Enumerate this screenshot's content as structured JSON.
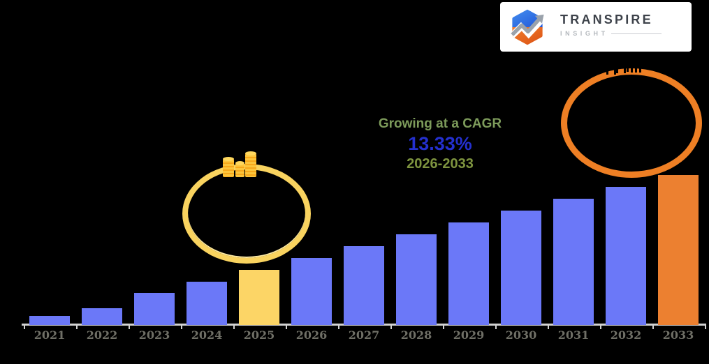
{
  "page": {
    "background": "#000000"
  },
  "logo": {
    "brand": "TRANSPIRE",
    "subtitle": "INSIGHT",
    "icon": "hexagon-growth-arrow-icon"
  },
  "annotation": {
    "line1": "Growing at a CAGR",
    "value": "13.33%",
    "range": "2026-2033"
  },
  "decorations": {
    "yellow_circle": "hand-drawn ellipse around 2024-2025 bars",
    "coins_icon": "three gold coin stacks on top of yellow circle",
    "orange_circle": "hand-drawn ellipse above 2031-2033 bars",
    "silhouette_icon": "black mini bar-chart icon partially visible over orange circle top"
  },
  "chart_data": {
    "type": "bar",
    "title": "",
    "xlabel": "",
    "ylabel": "",
    "grid": false,
    "legend": false,
    "categories": [
      "2021",
      "2022",
      "2023",
      "2024",
      "2025",
      "2026",
      "2027",
      "2028",
      "2029",
      "2030",
      "2031",
      "2032",
      "2033"
    ],
    "values": [
      13,
      24,
      46,
      62,
      79,
      96,
      113,
      130,
      147,
      164,
      181,
      198,
      215
    ],
    "value_note": "no numeric y-axis shown; values are relative bar heights in pixels",
    "ylim": [
      0,
      230
    ],
    "bar_colors": {
      "default": "#6B78F8",
      "2025": "#FCD566",
      "2033": "#EC8030"
    },
    "highlighted_years": [
      "2025",
      "2033"
    ]
  },
  "colors": {
    "background": "#000000",
    "bar_default": "#6B78F8",
    "bar_2025": "#FCD566",
    "bar_2033": "#EC8030",
    "axis": "#D2D2D2",
    "tick_label": "#6F6F66",
    "annotation_green": "#7D9B5B",
    "annotation_blue": "#2430CF",
    "annotation_olive": "#7E943F",
    "circle_yellow": "#F9D35F",
    "circle_orange": "#EE7F24",
    "coin_gold": "#F7A81B",
    "coin_gold_light": "#FCC53C",
    "logo_text": "#3D424A",
    "logo_subtext": "#B4B8BD"
  }
}
